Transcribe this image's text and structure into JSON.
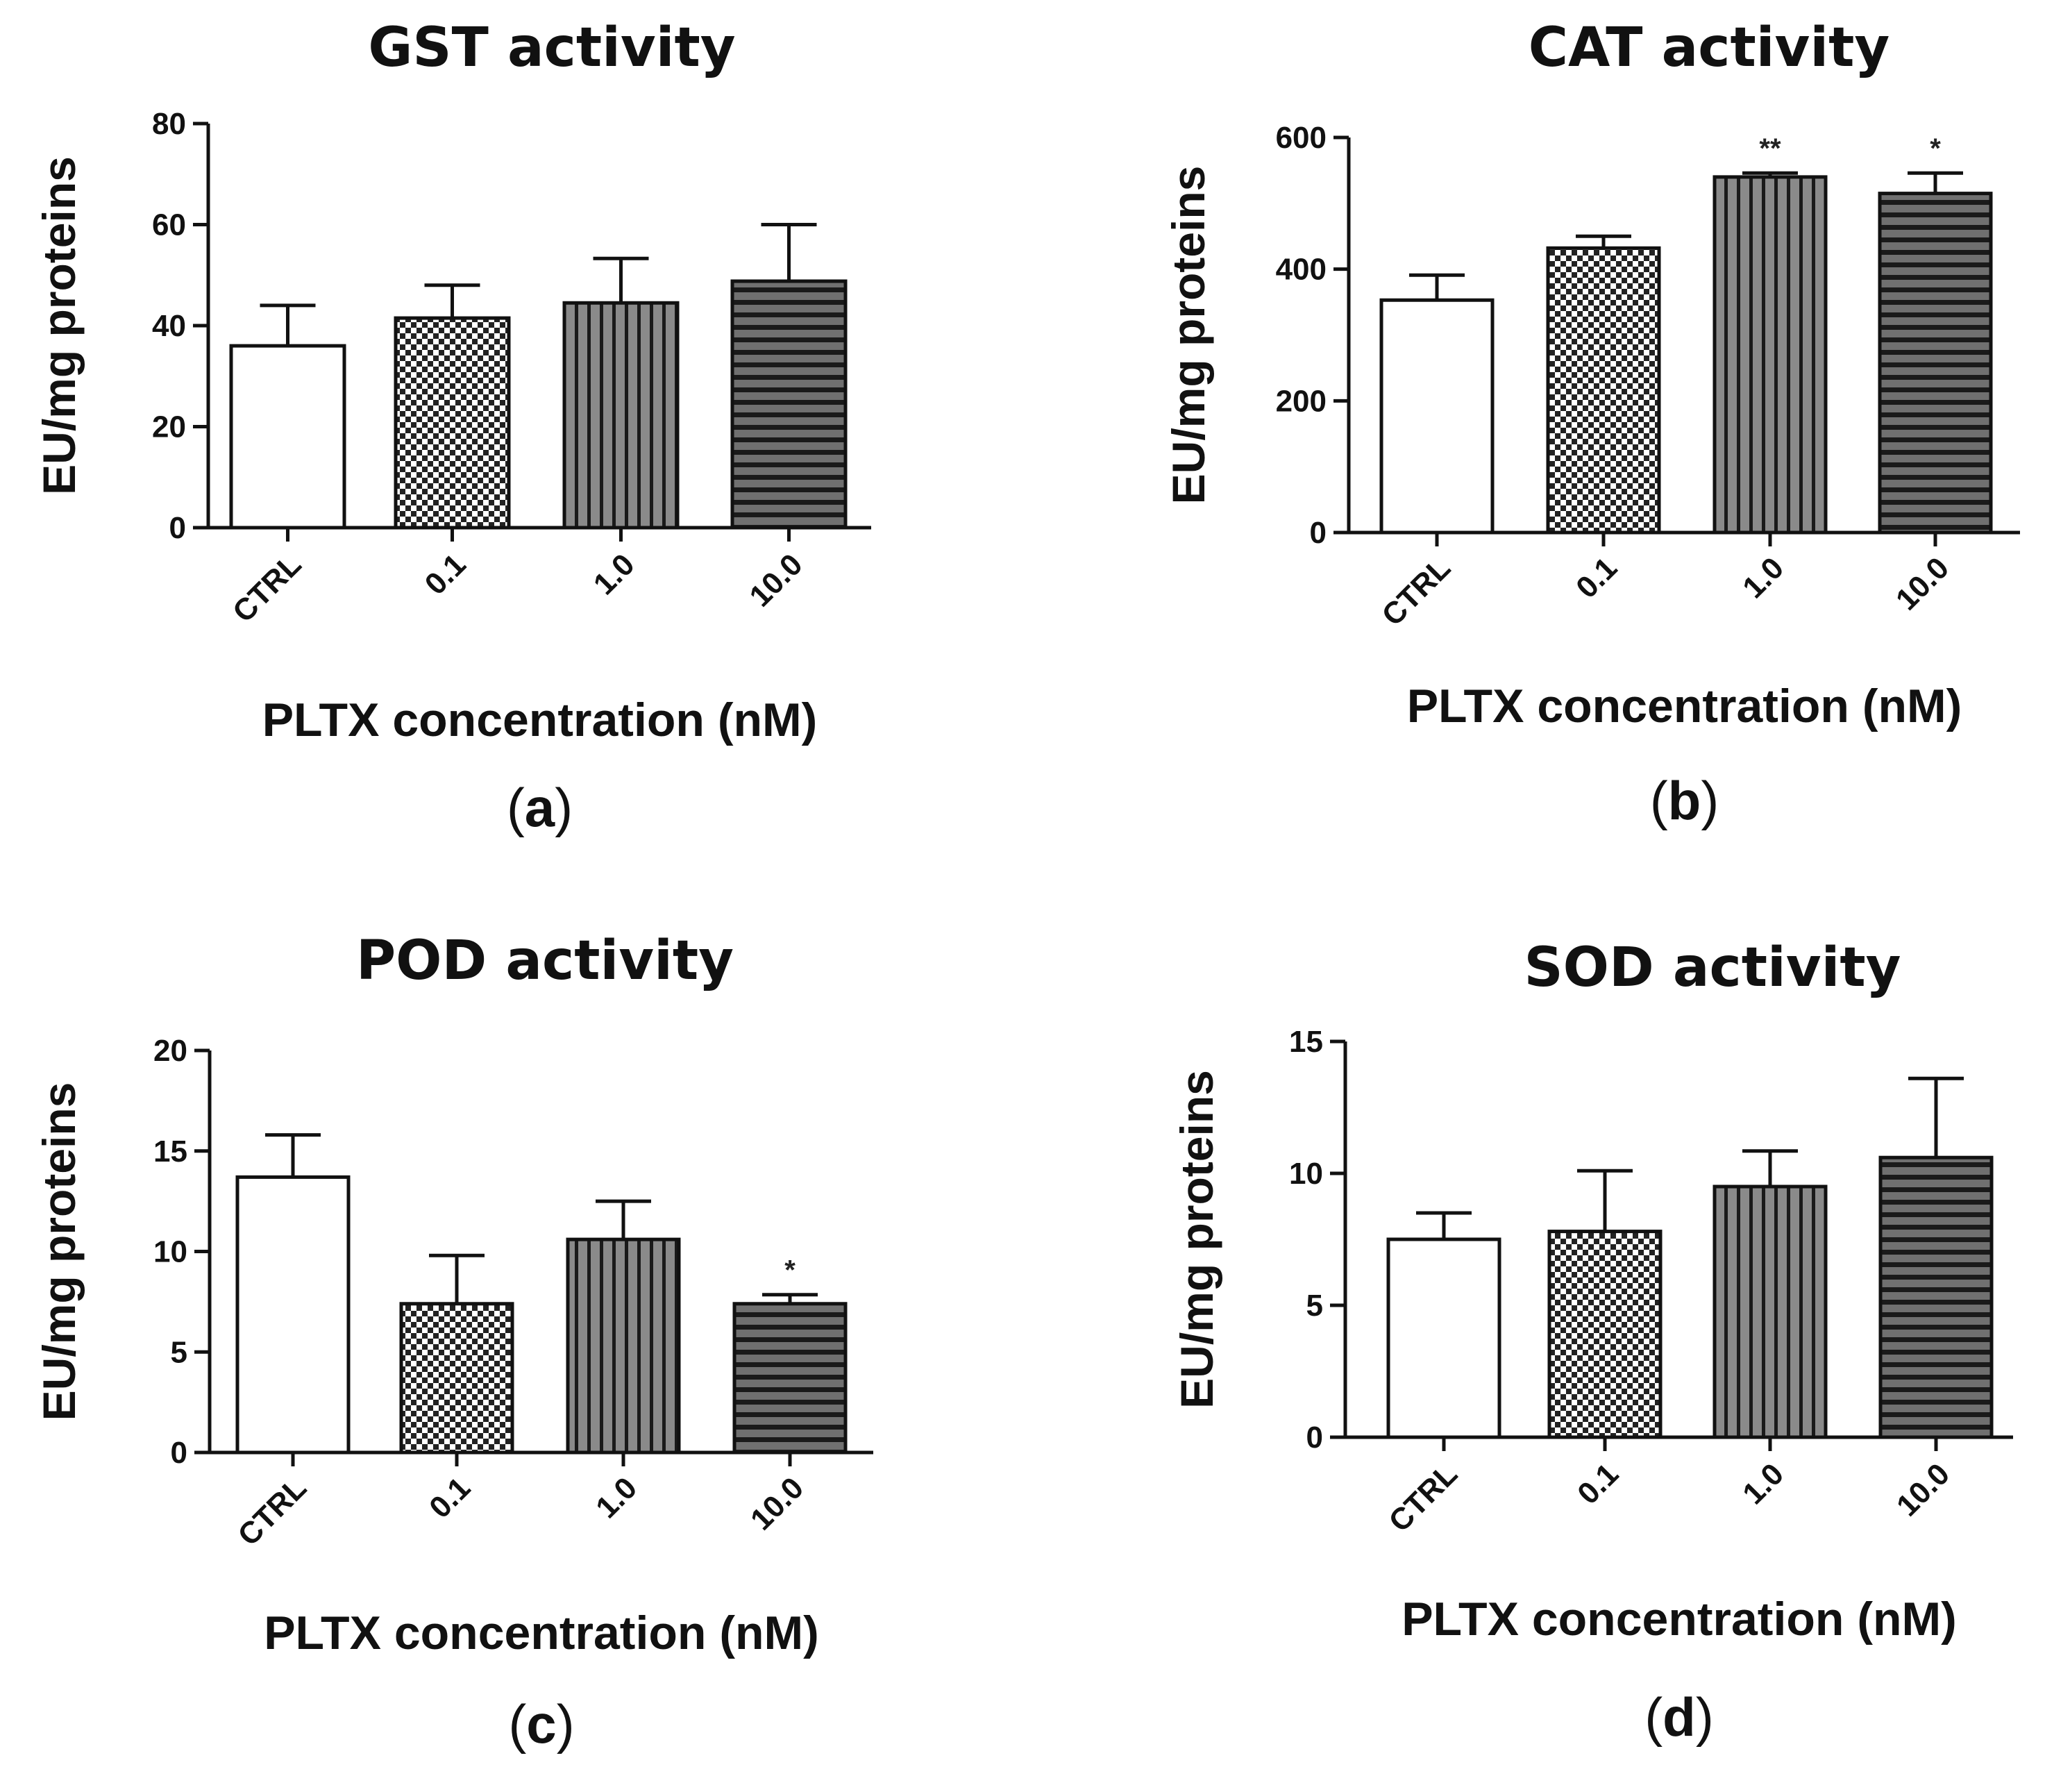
{
  "figure": {
    "x_label": "PLTX concentration (nM)",
    "y_label": "EU/mg proteins"
  },
  "chart_data": [
    {
      "type": "bar",
      "panel": "a",
      "title": "GST activity",
      "xlabel": "PLTX concentration (nM)",
      "ylabel": "EU/mg proteins",
      "categories": [
        "CTRL",
        "0.1",
        "1.0",
        "10.0"
      ],
      "values": [
        36,
        41.5,
        44.5,
        48.8
      ],
      "errors": [
        8,
        6.5,
        8.8,
        11.2
      ],
      "significance": [
        "",
        "",
        "",
        ""
      ],
      "ylim": [
        0,
        80
      ],
      "yticks": [
        "0",
        "20",
        "40",
        "60",
        "80"
      ],
      "patterns": [
        "white",
        "checker",
        "vstripe",
        "hstripe"
      ]
    },
    {
      "type": "bar",
      "panel": "b",
      "title": "CAT activity",
      "xlabel": "PLTX concentration (nM)",
      "ylabel": "EU/mg proteins",
      "categories": [
        "CTRL",
        "0.1",
        "1.0",
        "10.0"
      ],
      "values": [
        353,
        432,
        540,
        515
      ],
      "errors": [
        38,
        18,
        6,
        31
      ],
      "significance": [
        "",
        "",
        "**",
        "*"
      ],
      "ylim": [
        0,
        600
      ],
      "yticks": [
        "0",
        "200",
        "400",
        "600"
      ],
      "patterns": [
        "white",
        "checker",
        "vstripe",
        "hstripe"
      ]
    },
    {
      "type": "bar",
      "panel": "c",
      "title": "POD activity",
      "xlabel": "PLTX concentration (nM)",
      "ylabel": "EU/mg proteins",
      "categories": [
        "CTRL",
        "0.1",
        "1.0",
        "10.0"
      ],
      "values": [
        13.7,
        7.4,
        10.6,
        7.4
      ],
      "errors": [
        2.1,
        2.4,
        1.9,
        0.45
      ],
      "significance": [
        "",
        "",
        "",
        "*"
      ],
      "ylim": [
        0,
        20
      ],
      "yticks": [
        "0",
        "5",
        "10",
        "15",
        "20"
      ],
      "patterns": [
        "white",
        "checker",
        "vstripe",
        "hstripe"
      ]
    },
    {
      "type": "bar",
      "panel": "d",
      "title": "SOD activity",
      "xlabel": "PLTX concentration (nM)",
      "ylabel": "EU/mg proteins",
      "categories": [
        "CTRL",
        "0.1",
        "1.0",
        "10.0"
      ],
      "values": [
        7.5,
        7.8,
        9.5,
        10.6
      ],
      "errors": [
        1.0,
        2.3,
        1.35,
        3.0
      ],
      "significance": [
        "",
        "",
        "",
        ""
      ],
      "ylim": [
        0,
        15
      ],
      "yticks": [
        "0",
        "5",
        "10",
        "15"
      ],
      "patterns": [
        "white",
        "checker",
        "vstripe",
        "hstripe"
      ]
    }
  ]
}
